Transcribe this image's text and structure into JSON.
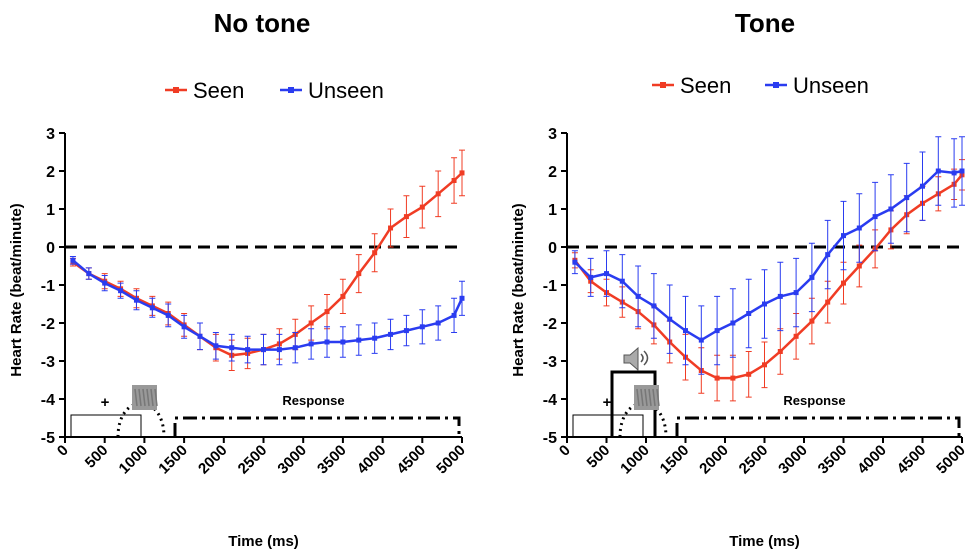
{
  "chart_data": [
    {
      "type": "line",
      "title": "No tone",
      "xlabel": "Time (ms)",
      "ylabel": "Heart Rate (beat/minute)",
      "x": [
        100,
        300,
        500,
        700,
        900,
        1100,
        1300,
        1500,
        1700,
        1900,
        2100,
        2300,
        2500,
        2700,
        2900,
        3100,
        3300,
        3500,
        3700,
        3900,
        4100,
        4300,
        4500,
        4700,
        4900,
        5000
      ],
      "xlim": [
        0,
        5000
      ],
      "xticks": [
        0,
        500,
        1000,
        1500,
        2000,
        2500,
        3000,
        3500,
        4000,
        4500,
        5000
      ],
      "ylim": [
        -5,
        3
      ],
      "yticks": [
        -5,
        -4,
        -3,
        -2,
        -1,
        0,
        1,
        2,
        3
      ],
      "reference_line": 0,
      "annotations": [
        "+",
        "Response"
      ],
      "series": [
        {
          "name": "Seen",
          "color": "#f03c24",
          "values": [
            -0.4,
            -0.7,
            -0.9,
            -1.1,
            -1.35,
            -1.55,
            -1.75,
            -2.05,
            -2.35,
            -2.65,
            -2.85,
            -2.8,
            -2.7,
            -2.55,
            -2.3,
            -2.0,
            -1.7,
            -1.3,
            -0.7,
            -0.15,
            0.5,
            0.8,
            1.05,
            1.4,
            1.75,
            1.95
          ],
          "errors": [
            0.1,
            0.15,
            0.2,
            0.2,
            0.25,
            0.25,
            0.3,
            0.3,
            0.35,
            0.35,
            0.4,
            0.4,
            0.4,
            0.4,
            0.4,
            0.45,
            0.45,
            0.45,
            0.5,
            0.5,
            0.5,
            0.55,
            0.55,
            0.6,
            0.6,
            0.6
          ]
        },
        {
          "name": "Unseen",
          "color": "#2a3cf0",
          "values": [
            -0.35,
            -0.7,
            -0.95,
            -1.15,
            -1.4,
            -1.6,
            -1.8,
            -2.1,
            -2.35,
            -2.6,
            -2.65,
            -2.7,
            -2.7,
            -2.7,
            -2.65,
            -2.55,
            -2.5,
            -2.5,
            -2.45,
            -2.4,
            -2.3,
            -2.2,
            -2.1,
            -2.0,
            -1.8,
            -1.35
          ],
          "errors": [
            0.1,
            0.15,
            0.2,
            0.2,
            0.25,
            0.25,
            0.3,
            0.3,
            0.35,
            0.35,
            0.35,
            0.35,
            0.4,
            0.4,
            0.4,
            0.4,
            0.4,
            0.4,
            0.4,
            0.4,
            0.4,
            0.4,
            0.45,
            0.45,
            0.45,
            0.45
          ]
        }
      ]
    },
    {
      "type": "line",
      "title": "Tone",
      "xlabel": "Time (ms)",
      "ylabel": "Heart Rate (beat/minute)",
      "x": [
        100,
        300,
        500,
        700,
        900,
        1100,
        1300,
        1500,
        1700,
        1900,
        2100,
        2300,
        2500,
        2700,
        2900,
        3100,
        3300,
        3500,
        3700,
        3900,
        4100,
        4300,
        4500,
        4700,
        4900,
        5000
      ],
      "xlim": [
        0,
        5000
      ],
      "xticks": [
        0,
        500,
        1000,
        1500,
        2000,
        2500,
        3000,
        3500,
        4000,
        4500,
        5000
      ],
      "ylim": [
        -5,
        3
      ],
      "yticks": [
        -5,
        -4,
        -3,
        -2,
        -1,
        0,
        1,
        2,
        3
      ],
      "reference_line": 0,
      "annotations": [
        "+",
        "Response"
      ],
      "series": [
        {
          "name": "Seen",
          "color": "#f03c24",
          "values": [
            -0.35,
            -0.9,
            -1.2,
            -1.45,
            -1.7,
            -2.05,
            -2.5,
            -2.9,
            -3.25,
            -3.45,
            -3.45,
            -3.35,
            -3.1,
            -2.75,
            -2.35,
            -1.95,
            -1.45,
            -0.95,
            -0.5,
            -0.05,
            0.45,
            0.85,
            1.15,
            1.4,
            1.65,
            1.9
          ],
          "errors": [
            0.2,
            0.3,
            0.35,
            0.4,
            0.45,
            0.5,
            0.55,
            0.6,
            0.6,
            0.6,
            0.6,
            0.6,
            0.6,
            0.6,
            0.6,
            0.6,
            0.55,
            0.55,
            0.55,
            0.5,
            0.5,
            0.5,
            0.45,
            0.45,
            0.4,
            0.4
          ]
        },
        {
          "name": "Unseen",
          "color": "#2a3cf0",
          "values": [
            -0.4,
            -0.8,
            -0.7,
            -0.9,
            -1.3,
            -1.55,
            -1.9,
            -2.2,
            -2.45,
            -2.2,
            -2.0,
            -1.75,
            -1.5,
            -1.3,
            -1.2,
            -0.8,
            -0.2,
            0.3,
            0.5,
            0.8,
            1.0,
            1.3,
            1.6,
            2.0,
            1.95,
            2.0
          ],
          "errors": [
            0.3,
            0.5,
            0.6,
            0.7,
            0.8,
            0.85,
            0.9,
            0.9,
            0.9,
            0.9,
            0.9,
            0.9,
            0.9,
            0.9,
            0.9,
            0.9,
            0.9,
            0.9,
            0.9,
            0.9,
            0.9,
            0.9,
            0.9,
            0.9,
            0.9,
            0.9
          ]
        }
      ]
    }
  ]
}
